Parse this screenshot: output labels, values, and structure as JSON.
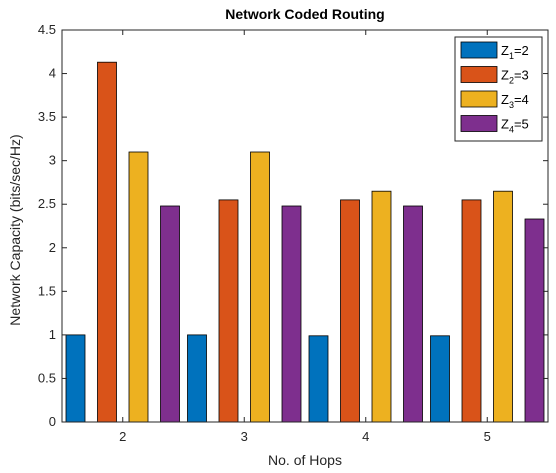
{
  "chart_data": {
    "type": "bar",
    "title": "Network Coded Routing",
    "xlabel": "No. of Hops",
    "ylabel": "Network Capacity (bits/sec/Hz)",
    "categories": [
      "2",
      "3",
      "4",
      "5"
    ],
    "ylim": [
      0,
      4.5
    ],
    "yticks": [
      "0",
      "0.5",
      "1",
      "1.5",
      "2",
      "2.5",
      "3",
      "3.5",
      "4",
      "4.5"
    ],
    "legend_position": "top-right",
    "grid": false,
    "series": [
      {
        "name": "Z1=2",
        "label_main": "Z",
        "label_sub": "1",
        "label_rest": "=2",
        "color": "#0072BD",
        "values": [
          1.0,
          1.0,
          0.99,
          0.99
        ]
      },
      {
        "name": "Z2=3",
        "label_main": "Z",
        "label_sub": "2",
        "label_rest": "=3",
        "color": "#D95319",
        "values": [
          4.13,
          2.55,
          2.55,
          2.55
        ]
      },
      {
        "name": "Z3=4",
        "label_main": "Z",
        "label_sub": "3",
        "label_rest": "=4",
        "color": "#EDB120",
        "values": [
          3.1,
          3.1,
          2.65,
          2.65
        ]
      },
      {
        "name": "Z4=5",
        "label_main": "Z",
        "label_sub": "4",
        "label_rest": "=5",
        "color": "#7E2F8E",
        "values": [
          2.48,
          2.48,
          2.48,
          2.33
        ]
      }
    ]
  }
}
